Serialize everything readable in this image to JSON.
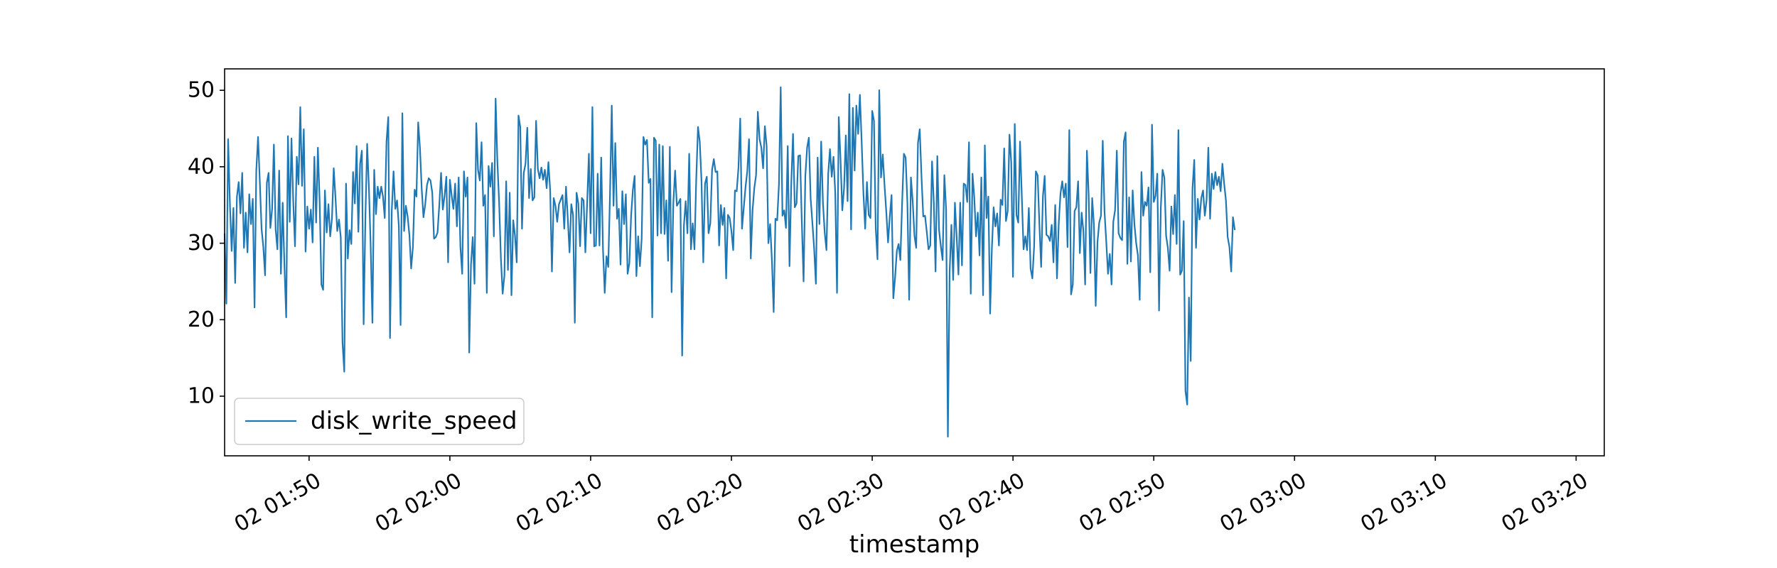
{
  "chart_data": {
    "type": "line",
    "title": "",
    "xlabel": "timestamp",
    "ylabel": "",
    "x_start": "02 01:44",
    "x_end": "02 03:21",
    "x_step_minutes": 0.125,
    "xlim": [
      "02 01:44",
      "02 03:22"
    ],
    "ylim": [
      2.2,
      52.8
    ],
    "grid": false,
    "legend_position": "lower-left",
    "x_ticks": [
      "02 01:50",
      "02 02:00",
      "02 02:10",
      "02 02:20",
      "02 02:30",
      "02 02:40",
      "02 02:50",
      "02 03:00",
      "02 03:10",
      "02 03:20"
    ],
    "y_ticks": [
      10,
      20,
      30,
      40,
      50
    ],
    "series": [
      {
        "name": "disk_write_speed",
        "color": "#1f77b4",
        "values": [
          31.2,
          22.1,
          43.6,
          35.2,
          29.0,
          34.6,
          24.8,
          36.1,
          38.0,
          33.9,
          39.2,
          29.4,
          34.0,
          28.8,
          36.4,
          32.5,
          35.8,
          21.6,
          39.5,
          43.9,
          38.1,
          31.9,
          29.5,
          25.8,
          37.9,
          39.2,
          32.0,
          34.5,
          42.9,
          31.8,
          29.2,
          39.5,
          26.0,
          35.3,
          27.0,
          20.3,
          44.0,
          32.8,
          43.7,
          35.5,
          29.6,
          41.3,
          37.7,
          47.8,
          37.5,
          44.9,
          28.9,
          34.8,
          31.9,
          34.4,
          30.1,
          41.3,
          32.7,
          42.5,
          35.5,
          24.6,
          23.9,
          36.9,
          31.4,
          35.1,
          30.9,
          33.2,
          39.8,
          36.0,
          31.6,
          33.1,
          30.8,
          17.0,
          13.2,
          37.8,
          28.0,
          31.7,
          29.9,
          39.3,
          35.2,
          42.7,
          31.5,
          40.4,
          42.1,
          19.4,
          33.3,
          43.0,
          37.3,
          29.6,
          19.6,
          39.6,
          33.8,
          37.4,
          35.9,
          37.4,
          36.1,
          33.3,
          43.3,
          46.5,
          17.6,
          34.3,
          39.4,
          34.5,
          35.6,
          32.3,
          19.3,
          47.0,
          31.6,
          34.9,
          33.5,
          31.1,
          26.7,
          29.5,
          37.0,
          36.1,
          45.8,
          42.5,
          37.1,
          33.4,
          35.1,
          37.6,
          38.5,
          38.2,
          36.6,
          30.6,
          30.8,
          31.4,
          35.0,
          39.2,
          34.4,
          36.2,
          38.7,
          27.5,
          38.3,
          36.3,
          34.5,
          37.8,
          32.2,
          38.6,
          29.5,
          26.0,
          39.4,
          36.1,
          38.6,
          15.7,
          27.2,
          30.8,
          24.7,
          45.7,
          39.6,
          38.2,
          43.2,
          34.9,
          36.3,
          23.5,
          40.1,
          37.4,
          40.5,
          30.9,
          48.9,
          40.7,
          35.3,
          28.0,
          23.4,
          25.8,
          38.1,
          26.5,
          36.6,
          23.2,
          33.0,
          31.0,
          27.5,
          46.7,
          45.2,
          31.9,
          39.2,
          40.4,
          45.1,
          35.9,
          39.7,
          35.6,
          36.0,
          46.0,
          39.7,
          38.5,
          39.9,
          38.3,
          39.6,
          37.2,
          40.6,
          36.9,
          26.3,
          35.9,
          34.9,
          32.8,
          35.1,
          35.7,
          36.3,
          31.9,
          37.4,
          33.3,
          28.8,
          35.1,
          33.7,
          19.6,
          36.6,
          35.2,
          29.6,
          35.9,
          35.6,
          28.8,
          35.2,
          41.7,
          31.3,
          47.8,
          29.6,
          29.7,
          39.1,
          29.7,
          41.2,
          29.3,
          23.5,
          28.3,
          26.9,
          36.4,
          48.0,
          34.9,
          43.1,
          33.2,
          34.5,
          27.2,
          36.8,
          32.5,
          36.4,
          26.0,
          27.4,
          33.6,
          37.0,
          38.8,
          25.7,
          30.9,
          27.0,
          30.6,
          43.9,
          42.9,
          43.5,
          37.9,
          38.4,
          20.3,
          43.8,
          43.4,
          31.0,
          42.9,
          31.3,
          42.7,
          31.2,
          35.6,
          27.7,
          42.6,
          23.6,
          35.3,
          39.5,
          34.9,
          35.3,
          35.8,
          15.3,
          32.3,
          35.5,
          31.3,
          41.7,
          29.2,
          32.6,
          29.2,
          38.4,
          45.2,
          43.3,
          38.1,
          27.5,
          37.8,
          38.7,
          31.3,
          32.6,
          39.6,
          41.0,
          39.3,
          39.4,
          29.7,
          35.0,
          32.4,
          34.6,
          25.4,
          33.7,
          33.3,
          31.6,
          29.1,
          36.9,
          36.8,
          39.9,
          46.3,
          31.9,
          34.6,
          37.3,
          39.4,
          43.6,
          28.0,
          34.3,
          37.2,
          38.9,
          47.2,
          43.6,
          42.5,
          39.8,
          45.3,
          42.7,
          30.0,
          32.5,
          27.8,
          21.0,
          33.2,
          33.0,
          37.7,
          50.4,
          33.6,
          34.3,
          32.0,
          42.7,
          27.0,
          37.8,
          44.3,
          34.7,
          35.2,
          41.4,
          41.5,
          32.7,
          25.0,
          38.8,
          42.5,
          43.8,
          35.9,
          32.7,
          29.3,
          24.7,
          41.2,
          32.5,
          43.3,
          35.3,
          31.4,
          29.1,
          39.1,
          42.3,
          38.7,
          41.3,
          36.6,
          23.5,
          46.5,
          40.9,
          34.3,
          37.2,
          44.1,
          35.5,
          49.5,
          31.8,
          47.7,
          39.5,
          48.0,
          44.3,
          49.4,
          43.3,
          36.6,
          31.9,
          38.0,
          33.7,
          33.3,
          47.3,
          46.0,
          32.0,
          27.9,
          50.0,
          38.6,
          41.6,
          37.6,
          34.1,
          30.1,
          33.5,
          36.3,
          22.8,
          25.5,
          29.0,
          29.9,
          27.8,
          35.3,
          41.7,
          41.2,
          35.2,
          22.6,
          38.6,
          35.5,
          31.0,
          29.4,
          43.1,
          44.9,
          38.8,
          33.5,
          33.6,
          31.5,
          29.2,
          29.7,
          40.7,
          35.3,
          26.3,
          41.4,
          31.7,
          29.6,
          27.8,
          38.9,
          34.4,
          4.7,
          26.3,
          32.4,
          25.2,
          35.3,
          30.8,
          25.9,
          35.3,
          27.1,
          37.8,
          37.6,
          35.4,
          43.2,
          23.4,
          39.1,
          36.0,
          30.9,
          34.0,
          28.4,
          38.6,
          23.2,
          42.8,
          33.3,
          36.1,
          20.8,
          29.3,
          34.7,
          32.2,
          33.9,
          29.7,
          35.7,
          35.0,
          42.4,
          32.9,
          34.2,
          44.2,
          40.6,
          25.6,
          45.6,
          33.7,
          32.7,
          43.3,
          36.2,
          29.2,
          30.9,
          29.1,
          34.6,
          26.7,
          25.4,
          29.5,
          39.4,
          38.9,
          32.5,
          26.9,
          36.1,
          38.8,
          31.1,
          30.9,
          30.3,
          32.4,
          27.5,
          35.0,
          25.4,
          32.6,
          36.5,
          38.1,
          36.0,
          37.8,
          29.5,
          44.8,
          23.3,
          24.6,
          34.2,
          34.7,
          38.1,
          28.7,
          34.0,
          31.6,
          24.6,
          42.1,
          36.3,
          26.1,
          35.9,
          32.4,
          21.8,
          30.1,
          32.7,
          33.6,
          43.4,
          34.2,
          30.2,
          26.0,
          28.6,
          24.6,
          32.8,
          34.3,
          42.1,
          31.3,
          30.7,
          30.4,
          43.3,
          44.5,
          27.3,
          36.0,
          27.6,
          36.9,
          32.5,
          30.0,
          28.4,
          22.6,
          39.3,
          33.6,
          35.4,
          34.9,
          37.3,
          26.2,
          45.5,
          35.4,
          36.2,
          39.1,
          21.2,
          34.7,
          39.6,
          38.6,
          31.0,
          29.4,
          26.4,
          34.8,
          31.2,
          36.3,
          29.9,
          44.8,
          25.9,
          26.4,
          32.9,
          10.7,
          8.9,
          22.9,
          14.6,
          37.1,
          40.9,
          29.4,
          35.8,
          33.1,
          35.9,
          36.9,
          33.6,
          35.6,
          42.5,
          33.2,
          39.1,
          37.1,
          39.3,
          37.6,
          38.7,
          36.8,
          40.4,
          37.8,
          35.6,
          30.8,
          29.5,
          26.3,
          33.4,
          31.8
        ]
      }
    ]
  }
}
